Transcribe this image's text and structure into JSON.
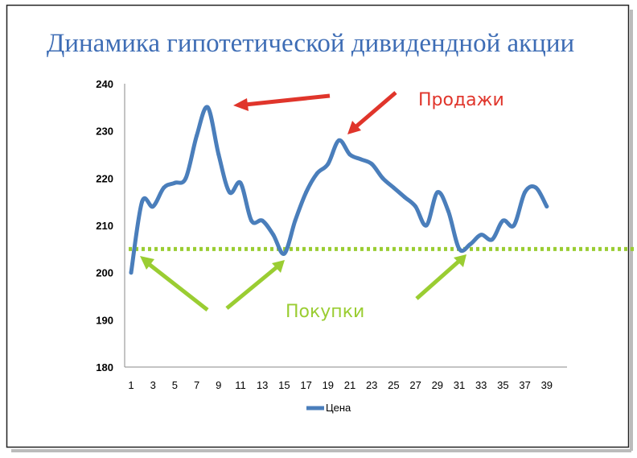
{
  "chart_data": {
    "type": "line",
    "title": "Динамика гипотетической дивидендной акции",
    "xlabel": "",
    "ylabel": "",
    "ylim": [
      180,
      240
    ],
    "y_ticks": [
      180,
      190,
      200,
      210,
      220,
      230,
      240
    ],
    "x_ticks": [
      1,
      3,
      5,
      7,
      9,
      11,
      13,
      15,
      17,
      19,
      21,
      23,
      25,
      27,
      29,
      31,
      33,
      35,
      37,
      39
    ],
    "grid": false,
    "legend_position": "bottom",
    "series": [
      {
        "name": "Цена",
        "color": "#4a7ebb",
        "x": [
          1,
          2,
          3,
          4,
          5,
          6,
          7,
          8,
          9,
          10,
          11,
          12,
          13,
          14,
          15,
          16,
          17,
          18,
          19,
          20,
          21,
          22,
          23,
          24,
          25,
          26,
          27,
          28,
          29,
          30,
          31,
          32,
          33,
          34,
          35,
          36,
          37,
          38,
          39
        ],
        "values": [
          200,
          215,
          214,
          218,
          219,
          220,
          229,
          235,
          225,
          217,
          219,
          211,
          211,
          208,
          204,
          211,
          217,
          221,
          223,
          228,
          225,
          224,
          223,
          220,
          218,
          216,
          214,
          210,
          217,
          213,
          205,
          206,
          208,
          207,
          211,
          210,
          217,
          218,
          214
        ]
      }
    ],
    "reference_line": {
      "value": 205,
      "color": "#9acd32"
    },
    "annotations": {
      "sell": {
        "text": "Продажи",
        "color": "#e0352b"
      },
      "buy": {
        "text": "Покупки",
        "color": "#9acd32"
      }
    }
  }
}
